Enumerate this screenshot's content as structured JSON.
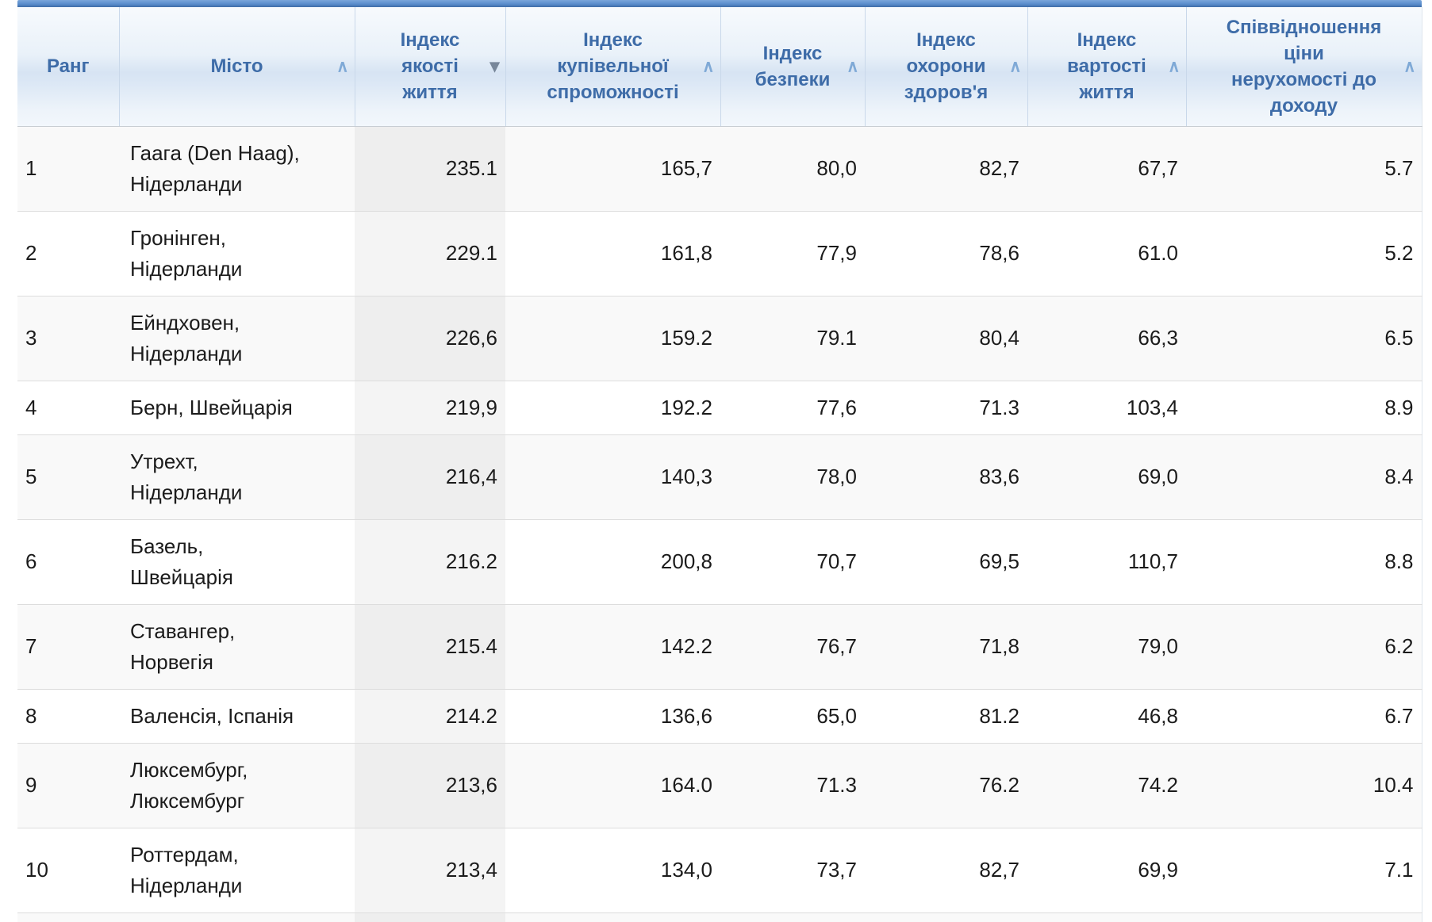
{
  "colors": {
    "top_bar": "#5a8ecd",
    "top_bar_dark": "#3f6da8",
    "header_band": "#d7e4f3",
    "header_text": "#3e6ca8",
    "header_separator": "#c9d8ea",
    "sortable_icon": "#7fa9d6",
    "sorted_icon": "#78879a",
    "row_border": "#dddddd",
    "row_alt_bg": "#f9f9f9",
    "sorted_col_tint": "rgba(0,0,0,0.042)",
    "body_text": "#1b1b1b"
  },
  "icons": {
    "sortable": {
      "name": "chevron-up-icon",
      "glyph": "∧"
    },
    "sorted_desc": {
      "name": "triangle-down-icon",
      "glyph": "▾"
    }
  },
  "table": {
    "columns": [
      {
        "id": "rank",
        "field": "rank",
        "label": "Ранг",
        "sort": null,
        "align": "left"
      },
      {
        "id": "city",
        "field": "city",
        "label": "Місто",
        "sort": "sortable",
        "align": "left"
      },
      {
        "id": "quality-of-life",
        "field": "quality_of_life",
        "label": "Індекс\nякості\nжиття",
        "sort": "desc",
        "align": "right"
      },
      {
        "id": "purchasing-power",
        "field": "purchasing_power",
        "label": "Індекс\nкупівельної\nспроможності",
        "sort": "sortable",
        "align": "right"
      },
      {
        "id": "safety",
        "field": "safety",
        "label": "Індекс\nбезпеки",
        "sort": "sortable",
        "align": "right"
      },
      {
        "id": "health-care",
        "field": "health_care",
        "label": "Індекс\nохорони\nздоров'я",
        "sort": "sortable",
        "align": "right"
      },
      {
        "id": "cost-of-living",
        "field": "cost_of_living",
        "label": "Індекс\nвартості\nжиття",
        "sort": "sortable",
        "align": "right"
      },
      {
        "id": "property-price-to-income",
        "field": "property_price_to_income",
        "label": "Співвідношення\nціни\nнерухомості до\nдоходу",
        "sort": "sortable",
        "align": "right"
      }
    ],
    "rows": [
      {
        "rank": "1",
        "city": "Гаага (Den Haag),\nНідерланди",
        "quality_of_life": "235.1",
        "purchasing_power": "165,7",
        "safety": "80,0",
        "health_care": "82,7",
        "cost_of_living": "67,7",
        "property_price_to_income": "5.7"
      },
      {
        "rank": "2",
        "city": "Гронінген,\nНідерланди",
        "quality_of_life": "229.1",
        "purchasing_power": "161,8",
        "safety": "77,9",
        "health_care": "78,6",
        "cost_of_living": "61.0",
        "property_price_to_income": "5.2"
      },
      {
        "rank": "3",
        "city": "Ейндховен,\nНідерланди",
        "quality_of_life": "226,6",
        "purchasing_power": "159.2",
        "safety": "79.1",
        "health_care": "80,4",
        "cost_of_living": "66,3",
        "property_price_to_income": "6.5"
      },
      {
        "rank": "4",
        "city": "Берн, Швейцарія",
        "quality_of_life": "219,9",
        "purchasing_power": "192.2",
        "safety": "77,6",
        "health_care": "71.3",
        "cost_of_living": "103,4",
        "property_price_to_income": "8.9"
      },
      {
        "rank": "5",
        "city": "Утрехт,\nНідерланди",
        "quality_of_life": "216,4",
        "purchasing_power": "140,3",
        "safety": "78,0",
        "health_care": "83,6",
        "cost_of_living": "69,0",
        "property_price_to_income": "8.4"
      },
      {
        "rank": "6",
        "city": "Базель,\nШвейцарія",
        "quality_of_life": "216.2",
        "purchasing_power": "200,8",
        "safety": "70,7",
        "health_care": "69,5",
        "cost_of_living": "110,7",
        "property_price_to_income": "8.8"
      },
      {
        "rank": "7",
        "city": "Ставангер,\nНорвегія",
        "quality_of_life": "215.4",
        "purchasing_power": "142.2",
        "safety": "76,7",
        "health_care": "71,8",
        "cost_of_living": "79,0",
        "property_price_to_income": "6.2"
      },
      {
        "rank": "8",
        "city": "Валенсія, Іспанія",
        "quality_of_life": "214.2",
        "purchasing_power": "136,6",
        "safety": "65,0",
        "health_care": "81.2",
        "cost_of_living": "46,8",
        "property_price_to_income": "6.7"
      },
      {
        "rank": "9",
        "city": "Люксембург,\nЛюксембург",
        "quality_of_life": "213,6",
        "purchasing_power": "164.0",
        "safety": "71.3",
        "health_care": "76.2",
        "cost_of_living": "74.2",
        "property_price_to_income": "10.4"
      },
      {
        "rank": "10",
        "city": "Роттердам,\nНідерланди",
        "quality_of_life": "213,4",
        "purchasing_power": "134,0",
        "safety": "73,7",
        "health_care": "82,7",
        "cost_of_living": "69,9",
        "property_price_to_income": "7.1"
      }
    ]
  }
}
